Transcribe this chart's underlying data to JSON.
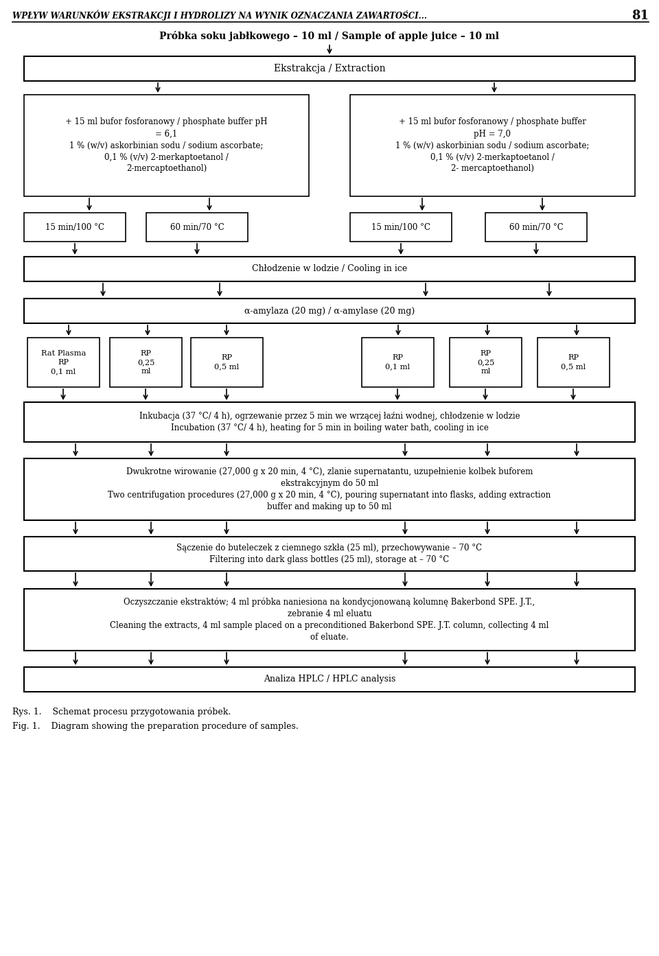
{
  "header_text": "WPŁYW WARUNKÓW EKSTRAKCJI I HYDROLIZY NA WYNIK OZNACZANIA ZAWARTOŚCI...",
  "page_number": "81",
  "title": "Próbka soku jabłkowego – 10 ml / Sample of apple juice – 10 ml",
  "box1": "Ekstrakcja / Extraction",
  "box2a": "+ 15 ml bufor fosforanowy / phosphate buffer pH\n= 6,1\n1 % (w/v) askorbinian sodu / sodium ascorbate;\n0,1 % (v/v) 2-merkaptoetanol /\n2-mercaptoethanol)",
  "box2b": "+ 15 ml bufor fosforanowy / phosphate buffer\npH = 7,0\n1 % (w/v) askorbinian sodu / sodium ascorbate;\n0,1 % (v/v) 2-merkaptoetanol /\n2- mercaptoethanol)",
  "box3a1": "15 min/100 °C",
  "box3a2": "60 min/70 °C",
  "box3b1": "15 min/100 °C",
  "box3b2": "60 min/70 °C",
  "box4": "Chłodzenie w lodzie / Cooling in ice",
  "box5": "α-amylaza (20 mg) / α-amylase (20 mg)",
  "box6a1": "Rat Plasma\nRP\n0,1 ml",
  "box6a2": "RP\n0,25\nml",
  "box6a3": "RP\n0,5 ml",
  "box6b1": "RP\n0,1 ml",
  "box6b2": "RP\n0,25\nml",
  "box6b3": "RP\n0,5 ml",
  "box7": "Inkubacja (37 °C/ 4 h), ogrzewanie przez 5 min we wrzącej łaźni wodnej, chłodzenie w lodzie\nIncubation (37 °C/ 4 h), heating for 5 min in boiling water bath, cooling in ice",
  "box8": "Dwukrotne wirowanie (27,000 g x 20 min, 4 °C), zlanie supernatantu, uzupełnienie kolbek buforem\nekstrakcyjnym do 50 ml\nTwo centrifugation procedures (27,000 g x 20 min, 4 °C), pouring supernatant into flasks, adding extraction\nbuffer and making up to 50 ml",
  "box9": "Sączenie do buteleczek z ciemnego szkła (25 ml), przechowywanie – 70 °C\nFiltering into dark glass bottles (25 ml), storage at – 70 °C",
  "box10": "Oczyszczanie ekstraktów; 4 ml próbka naniesiona na kondycjonowaną kolumnę Bakerbond SPE. J.T.,\nzebranie 4 ml eluatu\nCleaning the extracts, 4 ml sample placed on a preconditioned Bakerbond SPE. J.T. column, collecting 4 ml\nof eluate.",
  "box11": "Analiza HPLC / HPLC analysis",
  "caption1": "Rys. 1.    Schemat procesu przygotowania próbek.",
  "caption2": "Fig. 1.    Diagram showing the preparation procedure of samples."
}
